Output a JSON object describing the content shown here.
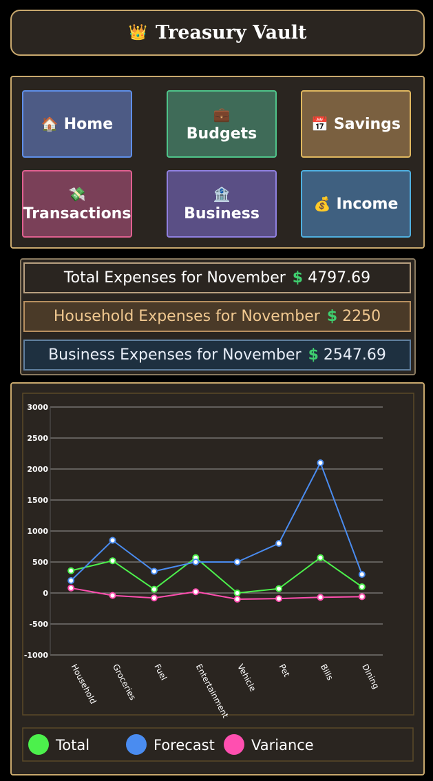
{
  "header": {
    "icon": "👑",
    "title": "Treasury Vault"
  },
  "nav": [
    {
      "icon": "🏠",
      "label": "Home"
    },
    {
      "icon": "💼",
      "label": "Budgets"
    },
    {
      "icon": "📅",
      "label": "Savings"
    },
    {
      "icon": "💸",
      "label": "Transactions"
    },
    {
      "icon": "🏦",
      "label": "Business"
    },
    {
      "icon": "💰",
      "label": "Income"
    }
  ],
  "summary": [
    {
      "label": "Total Expenses for November",
      "currency": "$",
      "amount": 4797.69
    },
    {
      "label": "Household Expenses for November",
      "currency": "$",
      "amount": 2250
    },
    {
      "label": "Business Expenses for November",
      "currency": "$",
      "amount": 2547.69
    }
  ],
  "chart_data": {
    "type": "line",
    "categories": [
      "Household",
      "Groceries",
      "Fuel",
      "Entertainment",
      "Vehicle",
      "Pet",
      "Bills",
      "Dining"
    ],
    "series": [
      {
        "name": "Total",
        "color": "#4cf04c",
        "values": [
          360,
          520,
          60,
          570,
          0,
          70,
          570,
          100
        ]
      },
      {
        "name": "Forecast",
        "color": "#4a8cf0",
        "values": [
          200,
          850,
          350,
          500,
          500,
          800,
          2100,
          300
        ]
      },
      {
        "name": "Variance",
        "color": "#ff4fb0",
        "values": [
          80,
          -40,
          -80,
          20,
          -100,
          -90,
          -70,
          -60
        ]
      }
    ],
    "ylim": [
      -1000,
      3000
    ],
    "yticks": [
      -1000,
      -500,
      0,
      500,
      1000,
      1500,
      2000,
      2500,
      3000
    ],
    "grid": true
  }
}
